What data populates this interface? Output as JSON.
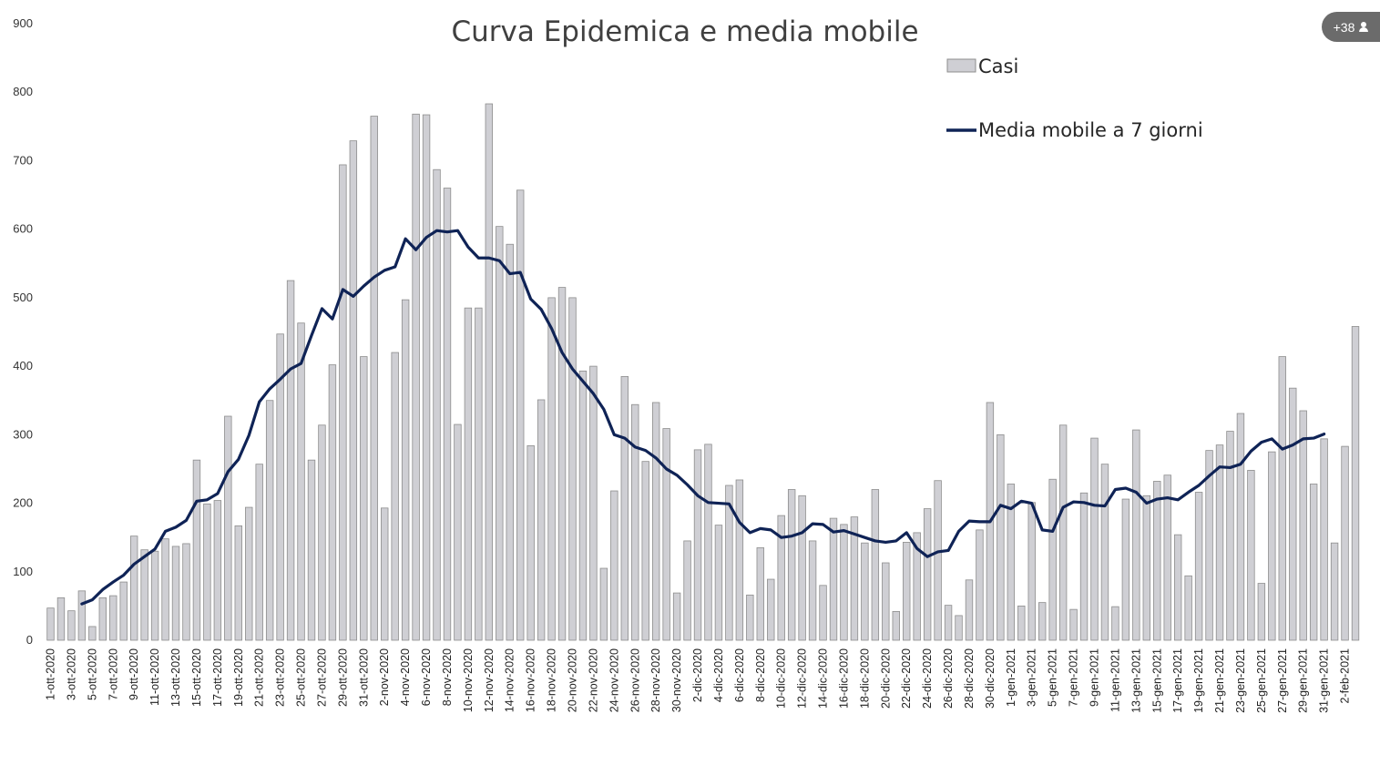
{
  "participants_badge": {
    "label": "+38",
    "icon": "person-icon"
  },
  "chart_data": {
    "type": "bar",
    "title": "Curva Epidemica e media mobile",
    "xlabel": "",
    "ylabel": "",
    "ylim": [
      0,
      900
    ],
    "yticks": [
      0,
      100,
      200,
      300,
      400,
      500,
      600,
      700,
      800,
      900
    ],
    "grid": false,
    "legend_position": "top-right",
    "colors": {
      "bars": "#cfcfd4",
      "bar_edge": "#8d8d8d",
      "line": "#0f2356"
    },
    "categories": [
      "1-ott-2020",
      "2-ott-2020",
      "3-ott-2020",
      "4-ott-2020",
      "5-ott-2020",
      "6-ott-2020",
      "7-ott-2020",
      "8-ott-2020",
      "9-ott-2020",
      "10-ott-2020",
      "11-ott-2020",
      "12-ott-2020",
      "13-ott-2020",
      "14-ott-2020",
      "15-ott-2020",
      "16-ott-2020",
      "17-ott-2020",
      "18-ott-2020",
      "19-ott-2020",
      "20-ott-2020",
      "21-ott-2020",
      "22-ott-2020",
      "23-ott-2020",
      "24-ott-2020",
      "25-ott-2020",
      "26-ott-2020",
      "27-ott-2020",
      "28-ott-2020",
      "29-ott-2020",
      "30-ott-2020",
      "31-ott-2020",
      "1-nov-2020",
      "2-nov-2020",
      "3-nov-2020",
      "4-nov-2020",
      "5-nov-2020",
      "6-nov-2020",
      "7-nov-2020",
      "8-nov-2020",
      "9-nov-2020",
      "10-nov-2020",
      "11-nov-2020",
      "12-nov-2020",
      "13-nov-2020",
      "14-nov-2020",
      "15-nov-2020",
      "16-nov-2020",
      "17-nov-2020",
      "18-nov-2020",
      "19-nov-2020",
      "20-nov-2020",
      "21-nov-2020",
      "22-nov-2020",
      "23-nov-2020",
      "24-nov-2020",
      "25-nov-2020",
      "26-nov-2020",
      "27-nov-2020",
      "28-nov-2020",
      "29-nov-2020",
      "30-nov-2020",
      "1-dic-2020",
      "2-dic-2020",
      "3-dic-2020",
      "4-dic-2020",
      "5-dic-2020",
      "6-dic-2020",
      "7-dic-2020",
      "8-dic-2020",
      "9-dic-2020",
      "10-dic-2020",
      "11-dic-2020",
      "12-dic-2020",
      "13-dic-2020",
      "14-dic-2020",
      "15-dic-2020",
      "16-dic-2020",
      "17-dic-2020",
      "18-dic-2020",
      "19-dic-2020",
      "20-dic-2020",
      "21-dic-2020",
      "22-dic-2020",
      "23-dic-2020",
      "24-dic-2020",
      "25-dic-2020",
      "26-dic-2020",
      "27-dic-2020",
      "28-dic-2020",
      "29-dic-2020",
      "30-dic-2020",
      "31-dic-2020",
      "1-gen-2021",
      "2-gen-2021",
      "3-gen-2021",
      "4-gen-2021",
      "5-gen-2021",
      "6-gen-2021",
      "7-gen-2021",
      "8-gen-2021",
      "9-gen-2021",
      "10-gen-2021",
      "11-gen-2021",
      "12-gen-2021",
      "13-gen-2021",
      "14-gen-2021",
      "15-gen-2021",
      "16-gen-2021",
      "17-gen-2021",
      "18-gen-2021",
      "19-gen-2021",
      "20-gen-2021",
      "21-gen-2021",
      "22-gen-2021",
      "23-gen-2021",
      "24-gen-2021",
      "25-gen-2021",
      "26-gen-2021",
      "27-gen-2021",
      "28-gen-2021",
      "29-gen-2021",
      "30-gen-2021",
      "31-gen-2021",
      "1-feb-2021",
      "2-feb-2021",
      "3-feb-2021"
    ],
    "series": [
      {
        "name": "Casi",
        "type": "bar",
        "values": [
          47,
          62,
          43,
          72,
          20,
          62,
          65,
          85,
          152,
          132,
          130,
          148,
          137,
          141,
          263,
          199,
          204,
          327,
          167,
          194,
          257,
          350,
          447,
          525,
          463,
          263,
          314,
          402,
          694,
          729,
          414,
          765,
          193,
          420,
          497,
          768,
          767,
          687,
          660,
          315,
          485,
          485,
          783,
          604,
          578,
          657,
          284,
          351,
          500,
          515,
          500,
          393,
          400,
          105,
          218,
          385,
          344,
          261,
          347,
          309,
          69,
          145,
          278,
          286,
          168,
          226,
          234,
          66,
          135,
          89,
          182,
          220,
          211,
          145,
          80,
          178,
          169,
          180,
          142,
          220,
          113,
          42,
          143,
          157,
          192,
          233,
          51,
          36,
          88,
          161,
          347,
          300,
          228,
          50,
          201,
          55,
          235,
          314,
          45,
          215,
          295,
          257,
          49,
          206,
          307,
          211,
          232,
          241,
          154,
          94,
          216,
          277,
          285,
          305,
          331,
          248,
          83,
          275,
          414,
          368,
          335,
          228,
          294,
          142,
          283,
          458
        ]
      },
      {
        "name": "Media mobile a 7 giorni",
        "type": "line",
        "values": [
          null,
          null,
          null,
          53,
          59,
          74,
          85,
          95,
          111,
          122,
          133,
          159,
          165,
          175,
          203,
          205,
          214,
          246,
          264,
          299,
          348,
          367,
          381,
          396,
          404,
          445,
          484,
          469,
          512,
          502,
          517,
          530,
          540,
          545,
          586,
          570,
          588,
          598,
          596,
          598,
          574,
          558,
          558,
          554,
          535,
          537,
          498,
          483,
          455,
          420,
          396,
          378,
          360,
          337,
          300,
          295,
          282,
          277,
          266,
          250,
          241,
          227,
          211,
          201,
          200,
          199,
          172,
          157,
          163,
          161,
          150,
          152,
          157,
          170,
          169,
          158,
          160,
          155,
          150,
          145,
          143,
          145,
          157,
          134,
          122,
          129,
          131,
          159,
          174,
          173,
          173,
          197,
          192,
          203,
          200,
          161,
          159,
          194,
          202,
          201,
          197,
          196,
          220,
          222,
          216,
          200,
          206,
          208,
          205,
          216,
          226,
          240,
          253,
          252,
          257,
          276,
          289,
          294,
          279,
          285,
          294,
          295,
          301,
          null,
          null,
          null
        ]
      }
    ],
    "x_tick_labels": [
      "1-ott-2020",
      "3-ott-2020",
      "5-ott-2020",
      "7-ott-2020",
      "9-ott-2020",
      "11-ott-2020",
      "13-ott-2020",
      "15-ott-2020",
      "17-ott-2020",
      "19-ott-2020",
      "21-ott-2020",
      "23-ott-2020",
      "25-ott-2020",
      "27-ott-2020",
      "29-ott-2020",
      "31-ott-2020",
      "2-nov-2020",
      "4-nov-2020",
      "6-nov-2020",
      "8-nov-2020",
      "10-nov-2020",
      "12-nov-2020",
      "14-nov-2020",
      "16-nov-2020",
      "18-nov-2020",
      "20-nov-2020",
      "22-nov-2020",
      "24-nov-2020",
      "26-nov-2020",
      "28-nov-2020",
      "30-nov-2020",
      "2-dic-2020",
      "4-dic-2020",
      "6-dic-2020",
      "8-dic-2020",
      "10-dic-2020",
      "12-dic-2020",
      "14-dic-2020",
      "16-dic-2020",
      "18-dic-2020",
      "20-dic-2020",
      "22-dic-2020",
      "24-dic-2020",
      "26-dic-2020",
      "28-dic-2020",
      "30-dic-2020",
      "1-gen-2021",
      "3-gen-2021",
      "5-gen-2021",
      "7-gen-2021",
      "9-gen-2021",
      "11-gen-2021",
      "13-gen-2021",
      "15-gen-2021",
      "17-gen-2021",
      "19-gen-2021",
      "21-gen-2021",
      "23-gen-2021",
      "25-gen-2021",
      "27-gen-2021",
      "29-gen-2021",
      "31-gen-2021",
      "2-feb-2021"
    ]
  }
}
